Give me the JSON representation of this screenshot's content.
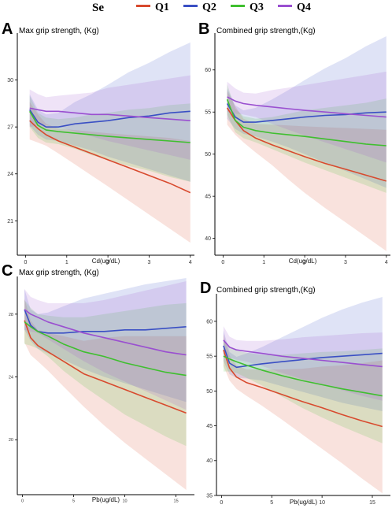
{
  "legend": {
    "title": "Se",
    "items": [
      {
        "label": "Q1",
        "color": "#d84a2e"
      },
      {
        "label": "Q2",
        "color": "#3a4fc4"
      },
      {
        "label": "Q3",
        "color": "#3fbf2f"
      },
      {
        "label": "Q4",
        "color": "#9a4fd0"
      }
    ]
  },
  "chart_data": [
    {
      "panel": "A",
      "type": "line",
      "title": "Max grip strength, (Kg)",
      "xlabel": "Cd(ug/dL)",
      "ylabel": "",
      "xlim": [
        -0.2,
        4.1
      ],
      "ylim": [
        18.8,
        32.8
      ],
      "xticks": [
        0,
        1,
        2,
        3,
        4
      ],
      "yticks": [
        21,
        24,
        27,
        30
      ],
      "x": [
        0.1,
        0.3,
        0.5,
        0.8,
        1.2,
        1.6,
        2.0,
        2.5,
        3.0,
        3.5,
        4.0
      ],
      "series": [
        {
          "name": "Q1",
          "values": [
            27.4,
            26.9,
            26.5,
            26.1,
            25.7,
            25.3,
            24.9,
            24.4,
            23.9,
            23.4,
            22.8
          ],
          "lower": [
            26.2,
            26.0,
            25.8,
            25.3,
            24.6,
            23.9,
            23.2,
            22.3,
            21.4,
            20.5,
            19.6
          ],
          "upper": [
            28.6,
            27.8,
            27.2,
            26.9,
            26.8,
            26.7,
            26.6,
            26.5,
            26.4,
            26.3,
            26.1
          ]
        },
        {
          "name": "Q2",
          "values": [
            28.1,
            27.3,
            27.0,
            27.0,
            27.2,
            27.3,
            27.4,
            27.6,
            27.7,
            27.9,
            28.0
          ],
          "lower": [
            27.1,
            26.5,
            26.2,
            26.1,
            25.8,
            25.5,
            25.1,
            24.7,
            24.3,
            23.9,
            23.5
          ],
          "upper": [
            29.1,
            28.1,
            27.8,
            27.9,
            28.6,
            29.1,
            29.7,
            30.5,
            31.1,
            31.8,
            32.4
          ]
        },
        {
          "name": "Q3",
          "values": [
            28.0,
            27.1,
            26.8,
            26.7,
            26.6,
            26.5,
            26.4,
            26.3,
            26.2,
            26.1,
            26.0
          ],
          "lower": [
            27.0,
            26.3,
            26.0,
            25.9,
            25.6,
            25.2,
            24.9,
            24.5,
            24.2,
            23.8,
            23.5
          ],
          "upper": [
            29.0,
            27.9,
            27.6,
            27.5,
            27.6,
            27.8,
            27.9,
            28.1,
            28.2,
            28.4,
            28.5
          ]
        },
        {
          "name": "Q4",
          "values": [
            28.2,
            28.1,
            28.0,
            28.0,
            27.9,
            27.8,
            27.8,
            27.7,
            27.6,
            27.5,
            27.4
          ],
          "lower": [
            27.0,
            27.1,
            27.1,
            27.0,
            26.7,
            26.4,
            26.1,
            25.8,
            25.5,
            25.2,
            24.9
          ],
          "upper": [
            29.4,
            29.1,
            28.9,
            29.0,
            29.1,
            29.2,
            29.5,
            29.7,
            29.9,
            30.1,
            30.3
          ]
        }
      ]
    },
    {
      "panel": "B",
      "type": "line",
      "title": "Combined grip strength,(Kg)",
      "xlabel": "Cd(ug/dL)",
      "ylabel": "",
      "xlim": [
        -0.2,
        4.1
      ],
      "ylim": [
        38.0,
        64.0
      ],
      "xticks": [
        0,
        1,
        2,
        3,
        4
      ],
      "yticks": [
        40,
        45,
        50,
        55,
        60
      ],
      "x": [
        0.1,
        0.3,
        0.5,
        0.8,
        1.2,
        1.6,
        2.0,
        2.5,
        3.0,
        3.5,
        4.0
      ],
      "series": [
        {
          "name": "Q1",
          "values": [
            55.5,
            54.0,
            52.8,
            51.9,
            51.1,
            50.4,
            49.7,
            48.9,
            48.2,
            47.5,
            46.8
          ],
          "lower": [
            53.5,
            52.3,
            51.4,
            50.2,
            48.7,
            47.0,
            45.4,
            43.6,
            41.9,
            40.2,
            38.5
          ],
          "upper": [
            57.5,
            55.7,
            54.2,
            53.6,
            53.5,
            53.4,
            53.3,
            53.2,
            53.1,
            53.0,
            52.9
          ]
        },
        {
          "name": "Q2",
          "values": [
            56.0,
            54.4,
            53.8,
            53.8,
            54.0,
            54.2,
            54.4,
            54.6,
            54.7,
            54.9,
            55.0
          ],
          "lower": [
            54.2,
            53.0,
            52.4,
            52.1,
            51.5,
            50.8,
            50.0,
            49.0,
            48.0,
            47.0,
            46.0
          ],
          "upper": [
            57.8,
            55.8,
            55.2,
            55.5,
            56.5,
            57.6,
            58.8,
            60.2,
            61.4,
            62.8,
            64.0
          ]
        },
        {
          "name": "Q3",
          "values": [
            56.5,
            54.0,
            53.2,
            52.8,
            52.5,
            52.3,
            52.1,
            51.8,
            51.5,
            51.2,
            51.0
          ],
          "lower": [
            54.7,
            52.6,
            51.9,
            51.4,
            50.6,
            49.8,
            49.0,
            48.1,
            47.2,
            46.3,
            45.4
          ],
          "upper": [
            58.3,
            55.4,
            54.5,
            54.2,
            54.4,
            54.8,
            55.2,
            55.5,
            55.8,
            56.1,
            56.6
          ]
        },
        {
          "name": "Q4",
          "values": [
            56.8,
            56.3,
            56.0,
            55.8,
            55.6,
            55.4,
            55.2,
            55.0,
            54.8,
            54.6,
            54.4
          ],
          "lower": [
            55.0,
            54.8,
            54.7,
            54.4,
            53.6,
            52.9,
            52.2,
            51.4,
            50.6,
            49.8,
            49.0
          ],
          "upper": [
            58.6,
            57.8,
            57.3,
            57.2,
            57.6,
            57.9,
            58.2,
            58.6,
            59.0,
            59.4,
            59.8
          ]
        }
      ]
    },
    {
      "panel": "C",
      "type": "line",
      "title": "Max grip strength, (Kg)",
      "xlabel": "Pb(ug/dL)",
      "ylabel": "",
      "xlim": [
        -0.5,
        16.8
      ],
      "ylim": [
        16.5,
        30.2
      ],
      "xticks": [
        0,
        5,
        10,
        15
      ],
      "yticks": [
        20,
        24,
        28
      ],
      "x": [
        0.2,
        0.8,
        1.5,
        2.5,
        4,
        6,
        8,
        10,
        12,
        14,
        16
      ],
      "series": [
        {
          "name": "Q1",
          "values": [
            27.6,
            26.5,
            26.0,
            25.6,
            25.0,
            24.2,
            23.7,
            23.2,
            22.7,
            22.2,
            21.7
          ],
          "lower": [
            26.2,
            25.4,
            25.0,
            24.4,
            23.4,
            22.1,
            20.9,
            19.8,
            18.8,
            17.8,
            16.8
          ],
          "upper": [
            29.0,
            27.6,
            27.0,
            26.8,
            26.6,
            26.3,
            26.5,
            26.6,
            26.6,
            26.6,
            26.6
          ]
        },
        {
          "name": "Q2",
          "values": [
            28.3,
            27.3,
            26.9,
            26.8,
            26.8,
            26.9,
            26.9,
            27.0,
            27.0,
            27.1,
            27.2
          ],
          "lower": [
            27.0,
            26.3,
            25.8,
            25.5,
            25.1,
            24.5,
            24.0,
            23.6,
            23.2,
            22.8,
            22.4
          ],
          "upper": [
            29.6,
            28.3,
            28.0,
            28.1,
            28.5,
            29.0,
            29.3,
            29.6,
            29.9,
            30.1,
            30.3
          ]
        },
        {
          "name": "Q3",
          "values": [
            27.5,
            27.2,
            26.9,
            26.6,
            26.1,
            25.6,
            25.3,
            24.9,
            24.6,
            24.3,
            24.1
          ],
          "lower": [
            26.1,
            26.0,
            25.8,
            25.3,
            24.4,
            23.4,
            22.5,
            21.6,
            20.9,
            20.2,
            19.6
          ],
          "upper": [
            28.9,
            28.4,
            28.0,
            27.9,
            27.8,
            27.8,
            28.0,
            28.2,
            28.4,
            28.6,
            28.7
          ]
        },
        {
          "name": "Q4",
          "values": [
            28.3,
            28.0,
            27.8,
            27.5,
            27.2,
            26.8,
            26.5,
            26.2,
            25.9,
            25.6,
            25.4
          ],
          "lower": [
            27.0,
            26.9,
            26.8,
            26.4,
            25.8,
            25.0,
            24.3,
            23.7,
            23.1,
            22.5,
            21.9
          ],
          "upper": [
            29.6,
            29.1,
            28.9,
            28.7,
            28.7,
            28.7,
            28.9,
            29.2,
            29.5,
            29.8,
            30.1
          ]
        }
      ]
    },
    {
      "panel": "D",
      "type": "line",
      "title": "Combined grip strength,(Kg)",
      "xlabel": "Pb(ug/dL)",
      "ylabel": "",
      "xlim": [
        -0.5,
        16.8
      ],
      "ylim": [
        35.0,
        63.5
      ],
      "xticks": [
        0,
        5,
        10,
        15
      ],
      "yticks": [
        35,
        40,
        45,
        50,
        55,
        60
      ],
      "x": [
        0.2,
        0.8,
        1.5,
        2.5,
        4,
        6,
        8,
        10,
        12,
        14,
        16
      ],
      "series": [
        {
          "name": "Q1",
          "values": [
            55.9,
            53.3,
            52.0,
            51.2,
            50.5,
            49.5,
            48.5,
            47.6,
            46.6,
            45.7,
            44.9
          ],
          "lower": [
            53.6,
            51.5,
            50.3,
            49.3,
            47.9,
            45.9,
            43.8,
            41.7,
            39.6,
            37.4,
            35.3
          ],
          "upper": [
            58.2,
            55.1,
            53.7,
            53.1,
            53.1,
            53.1,
            53.2,
            53.5,
            53.7,
            54.0,
            54.4
          ]
        },
        {
          "name": "Q2",
          "values": [
            56.5,
            54.0,
            53.4,
            53.6,
            53.9,
            54.2,
            54.5,
            54.8,
            55.0,
            55.2,
            55.4
          ],
          "lower": [
            54.3,
            52.4,
            51.9,
            51.8,
            51.5,
            50.7,
            49.9,
            49.1,
            48.3,
            47.7,
            47.1
          ],
          "upper": [
            58.7,
            55.6,
            54.9,
            55.4,
            56.3,
            57.7,
            59.1,
            60.5,
            61.7,
            62.7,
            63.5
          ]
        },
        {
          "name": "Q3",
          "values": [
            55.0,
            54.6,
            54.2,
            53.7,
            53.0,
            52.2,
            51.5,
            50.9,
            50.3,
            49.8,
            49.3
          ],
          "lower": [
            52.8,
            52.8,
            52.6,
            51.9,
            50.8,
            49.2,
            47.6,
            46.2,
            44.9,
            43.7,
            42.5
          ],
          "upper": [
            57.2,
            56.4,
            55.8,
            55.5,
            55.2,
            55.2,
            55.4,
            55.6,
            55.7,
            55.9,
            56.1
          ]
        },
        {
          "name": "Q4",
          "values": [
            57.3,
            56.3,
            55.9,
            55.7,
            55.4,
            55.0,
            54.7,
            54.4,
            54.1,
            53.8,
            53.5
          ],
          "lower": [
            55.3,
            54.8,
            54.5,
            54.2,
            53.6,
            52.6,
            51.7,
            50.9,
            50.1,
            49.3,
            48.6
          ],
          "upper": [
            59.3,
            57.8,
            57.3,
            57.2,
            57.2,
            57.4,
            57.7,
            57.9,
            58.1,
            58.3,
            58.4
          ]
        }
      ]
    }
  ]
}
